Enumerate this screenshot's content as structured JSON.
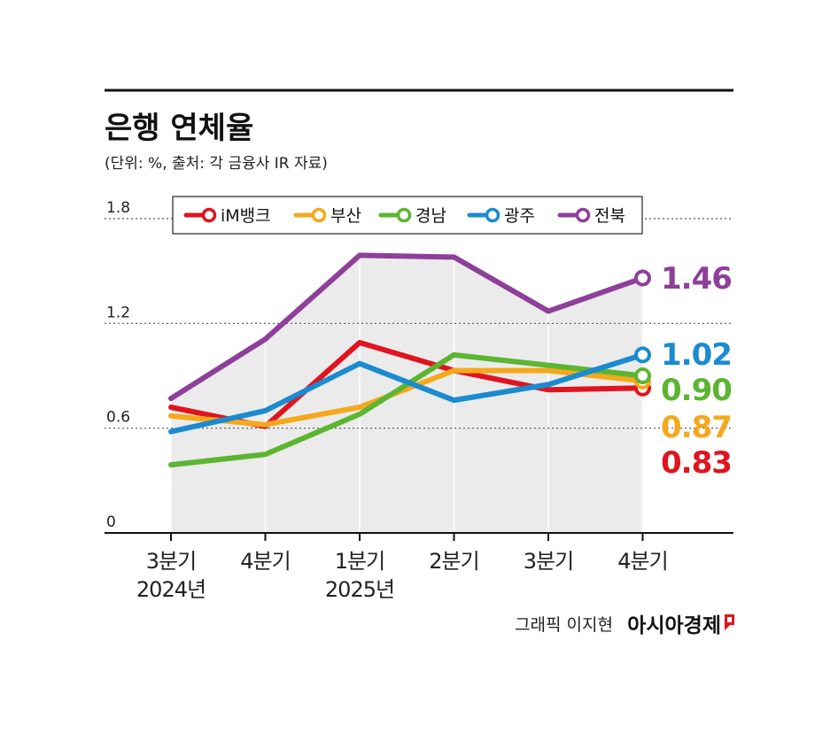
{
  "title": "은행 연체율",
  "subtitle": "(단위: %, 출처: 각 금융사 IR 자료)",
  "credit": {
    "text": "그래픽 이지현",
    "brand": "아시아경제"
  },
  "chart_data": {
    "type": "line",
    "area_series": "전북",
    "categories": [
      [
        "3분기",
        "2024년"
      ],
      [
        "4분기",
        ""
      ],
      [
        "1분기",
        "2025년"
      ],
      [
        "2분기",
        ""
      ],
      [
        "3분기",
        ""
      ],
      [
        "4분기",
        ""
      ]
    ],
    "ylim": [
      0,
      1.8
    ],
    "yticks": [
      "0",
      "0.6",
      "1.2",
      "1.8"
    ],
    "ytick_values": [
      0,
      0.6,
      1.2,
      1.8
    ],
    "grid": "horizontal dotted",
    "legend": "top-center",
    "series": [
      {
        "name": "iM뱅크",
        "color": "#e0141e",
        "values": [
          0.72,
          0.61,
          1.09,
          0.93,
          0.82,
          0.83
        ],
        "end_label": "0.83"
      },
      {
        "name": "부산",
        "color": "#f5a81c",
        "values": [
          0.67,
          0.62,
          0.72,
          0.93,
          0.93,
          0.87
        ],
        "end_label": "0.87"
      },
      {
        "name": "경남",
        "color": "#5cb531",
        "values": [
          0.39,
          0.45,
          0.68,
          1.02,
          0.96,
          0.9
        ],
        "end_label": "0.90"
      },
      {
        "name": "광주",
        "color": "#1a8bd0",
        "values": [
          0.58,
          0.7,
          0.97,
          0.76,
          0.85,
          1.02
        ],
        "end_label": "1.02"
      },
      {
        "name": "전북",
        "color": "#8e3f9a",
        "values": [
          0.77,
          1.11,
          1.59,
          1.58,
          1.27,
          1.46
        ],
        "end_label": "1.46"
      }
    ]
  }
}
